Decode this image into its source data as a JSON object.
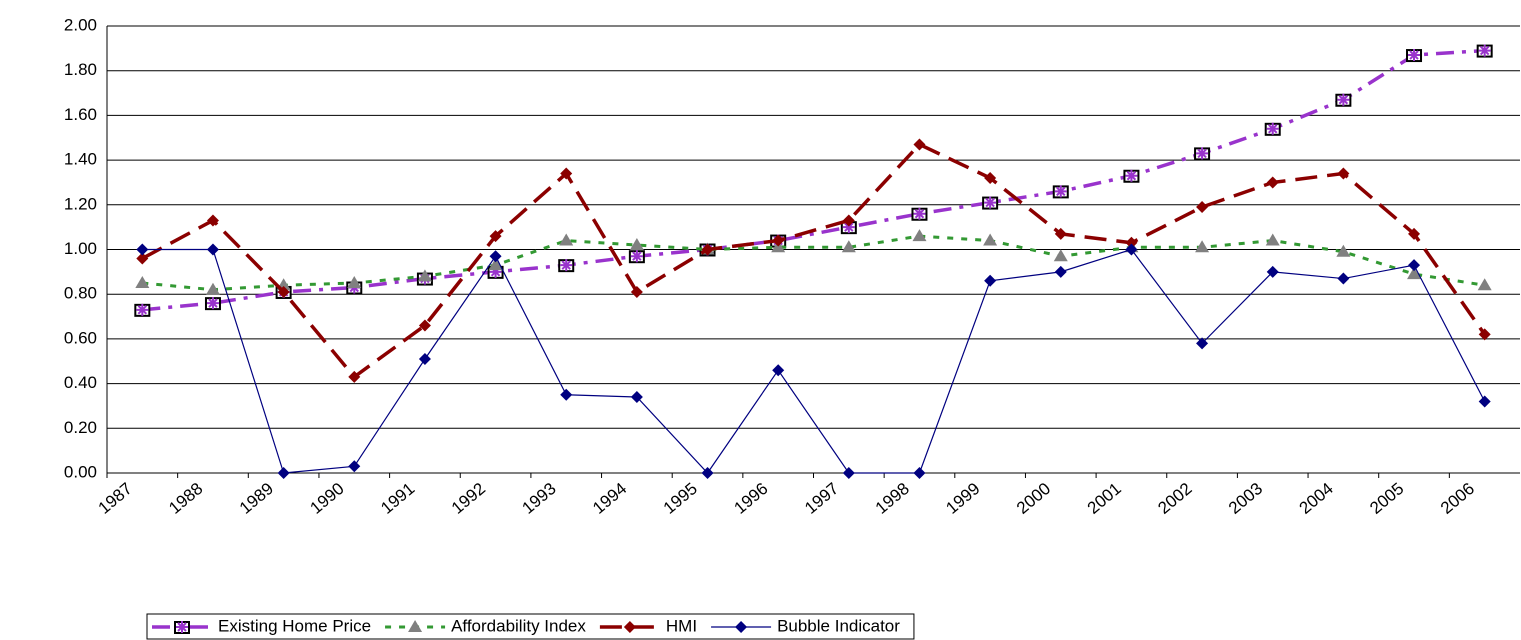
{
  "chart_data": {
    "type": "line",
    "categories": [
      "1987",
      "1988",
      "1989",
      "1990",
      "1991",
      "1992",
      "1993",
      "1994",
      "1995",
      "1996",
      "1997",
      "1998",
      "1999",
      "2000",
      "2001",
      "2002",
      "2003",
      "2004",
      "2005",
      "2006"
    ],
    "series": [
      {
        "name": "Existing Home Price",
        "color": "#9933cc",
        "dash": "dash-dot",
        "marker": "square-star",
        "values": [
          0.73,
          0.76,
          0.81,
          0.83,
          0.87,
          0.9,
          0.93,
          0.97,
          1.0,
          1.04,
          1.1,
          1.16,
          1.21,
          1.26,
          1.33,
          1.43,
          1.54,
          1.67,
          1.87,
          1.89
        ]
      },
      {
        "name": "Affordability Index",
        "color": "#339933",
        "dash": "short-dash",
        "marker": "triangle",
        "marker_color": "#808080",
        "values": [
          0.85,
          0.82,
          0.84,
          0.85,
          0.88,
          0.93,
          1.04,
          1.02,
          1.0,
          1.01,
          1.01,
          1.06,
          1.04,
          0.97,
          1.01,
          1.01,
          1.04,
          0.99,
          0.89,
          0.84
        ]
      },
      {
        "name": "HMI",
        "color": "#8b0000",
        "dash": "long-dash",
        "marker": "diamond",
        "values": [
          0.96,
          1.13,
          0.81,
          0.43,
          0.66,
          1.06,
          1.34,
          0.81,
          1.0,
          1.04,
          1.13,
          1.47,
          1.32,
          1.07,
          1.03,
          1.19,
          1.3,
          1.34,
          1.07,
          0.62
        ]
      },
      {
        "name": "Bubble Indicator",
        "color": "#000080",
        "dash": "solid",
        "marker": "diamond",
        "values": [
          1.0,
          1.0,
          0.0,
          0.03,
          0.51,
          0.97,
          0.35,
          0.34,
          0.0,
          0.46,
          0.0,
          0.0,
          0.86,
          0.9,
          1.0,
          0.58,
          0.9,
          0.87,
          0.93,
          0.32
        ]
      }
    ],
    "ylim": [
      0,
      2
    ],
    "yticks": [
      {
        "value": 0,
        "label": "0.00"
      },
      {
        "value": 0.2,
        "label": "0.20"
      },
      {
        "value": 0.4,
        "label": "0.40"
      },
      {
        "value": 0.6,
        "label": "0.60"
      },
      {
        "value": 0.8,
        "label": "0.80"
      },
      {
        "value": 1,
        "label": "1.00"
      },
      {
        "value": 1.2,
        "label": "1.20"
      },
      {
        "value": 1.4,
        "label": "1.40"
      },
      {
        "value": 1.6,
        "label": "1.60"
      },
      {
        "value": 1.8,
        "label": "1.80"
      },
      {
        "value": 2,
        "label": "2.00"
      }
    ],
    "grid": true,
    "legend": "bottom"
  }
}
